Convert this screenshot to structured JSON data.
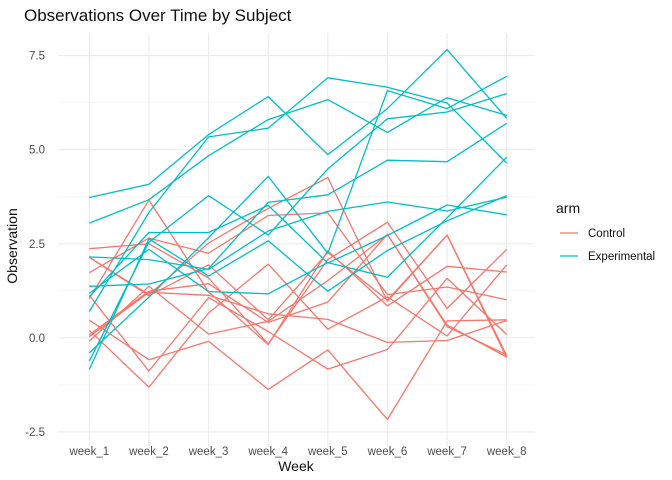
{
  "chart_data": {
    "type": "line",
    "title": "Observations Over Time by Subject",
    "xlabel": "Week",
    "ylabel": "Observation",
    "categories": [
      "week_1",
      "week_2",
      "week_3",
      "week_4",
      "week_5",
      "week_6",
      "week_7",
      "week_8"
    ],
    "ylim": [
      -2.9,
      8.1
    ],
    "yticks": [
      -2.5,
      0.0,
      2.5,
      5.0,
      7.5
    ],
    "ytick_labels": [
      "-2.5",
      "0.0",
      "2.5",
      "5.0",
      "7.5"
    ],
    "grid": true,
    "legend": {
      "title": "arm",
      "placement": "right",
      "entries": [
        "Control",
        "Experimental"
      ]
    },
    "colors": {
      "Control": "#F8766D",
      "Experimental": "#00BFC4"
    },
    "series": [
      {
        "arm": "Control",
        "values": [
          0.2,
          -1.31,
          0.66,
          1.96,
          0.23,
          1.09,
          0.05,
          1.94
        ]
      },
      {
        "arm": "Control",
        "values": [
          1.13,
          -0.88,
          1.07,
          0.17,
          -0.83,
          -0.31,
          1.58,
          0.09
        ]
      },
      {
        "arm": "Control",
        "values": [
          2.14,
          1.12,
          1.94,
          0.48,
          2.27,
          1.0,
          2.73,
          -0.47
        ]
      },
      {
        "arm": "Control",
        "values": [
          1.04,
          3.66,
          1.22,
          -0.18,
          2.31,
          0.85,
          1.9,
          1.75
        ]
      },
      {
        "arm": "Control",
        "values": [
          0.47,
          -0.58,
          -0.09,
          -1.37,
          -0.32,
          -2.17,
          0.45,
          0.48
        ]
      },
      {
        "arm": "Control",
        "values": [
          2.37,
          2.5,
          1.59,
          -0.16,
          2.08,
          3.07,
          0.78,
          2.35
        ]
      },
      {
        "arm": "Control",
        "values": [
          0.03,
          1.21,
          1.13,
          0.64,
          0.49,
          -0.12,
          -0.07,
          0.46
        ]
      },
      {
        "arm": "Control",
        "values": [
          -0.09,
          1.37,
          0.1,
          0.44,
          1.52,
          2.74,
          0.34,
          -0.51
        ]
      },
      {
        "arm": "Control",
        "values": [
          0.08,
          1.24,
          1.44,
          0.41,
          0.95,
          2.75,
          0.3,
          -0.45
        ]
      },
      {
        "arm": "Control",
        "values": [
          2.14,
          1.15,
          2.52,
          3.44,
          4.26,
          0.97,
          2.73,
          -0.53
        ]
      },
      {
        "arm": "Control",
        "values": [
          1.73,
          2.65,
          2.25,
          3.25,
          3.32,
          1.15,
          1.35,
          1.01
        ]
      },
      {
        "arm": "Experimental",
        "values": [
          3.05,
          3.67,
          4.84,
          5.8,
          6.33,
          5.46,
          6.38,
          5.91
        ]
      },
      {
        "arm": "Experimental",
        "values": [
          -0.84,
          2.63,
          1.64,
          2.58,
          1.24,
          2.32,
          3.11,
          3.78
        ]
      },
      {
        "arm": "Experimental",
        "values": [
          2.15,
          2.08,
          1.82,
          2.84,
          3.36,
          3.61,
          3.37,
          3.74
        ]
      },
      {
        "arm": "Experimental",
        "values": [
          -0.62,
          2.54,
          3.78,
          2.73,
          4.49,
          5.82,
          6.0,
          6.49
        ]
      },
      {
        "arm": "Experimental",
        "values": [
          0.7,
          3.33,
          5.34,
          5.57,
          6.91,
          6.66,
          6.24,
          4.64
        ]
      },
      {
        "arm": "Experimental",
        "values": [
          3.73,
          4.08,
          5.4,
          6.41,
          4.87,
          6.09,
          7.66,
          5.83
        ]
      },
      {
        "arm": "Experimental",
        "values": [
          1.18,
          2.35,
          1.23,
          1.17,
          2.0,
          1.61,
          3.19,
          4.8
        ]
      },
      {
        "arm": "Experimental",
        "values": [
          1.37,
          1.43,
          1.84,
          3.6,
          3.8,
          4.72,
          4.68,
          5.7
        ]
      },
      {
        "arm": "Experimental",
        "values": [
          -0.4,
          1.08,
          2.66,
          4.29,
          2.25,
          6.57,
          6.09,
          6.95
        ]
      },
      {
        "arm": "Experimental",
        "values": [
          1.09,
          2.8,
          2.8,
          3.52,
          1.99,
          2.72,
          3.53,
          3.27
        ]
      }
    ]
  }
}
